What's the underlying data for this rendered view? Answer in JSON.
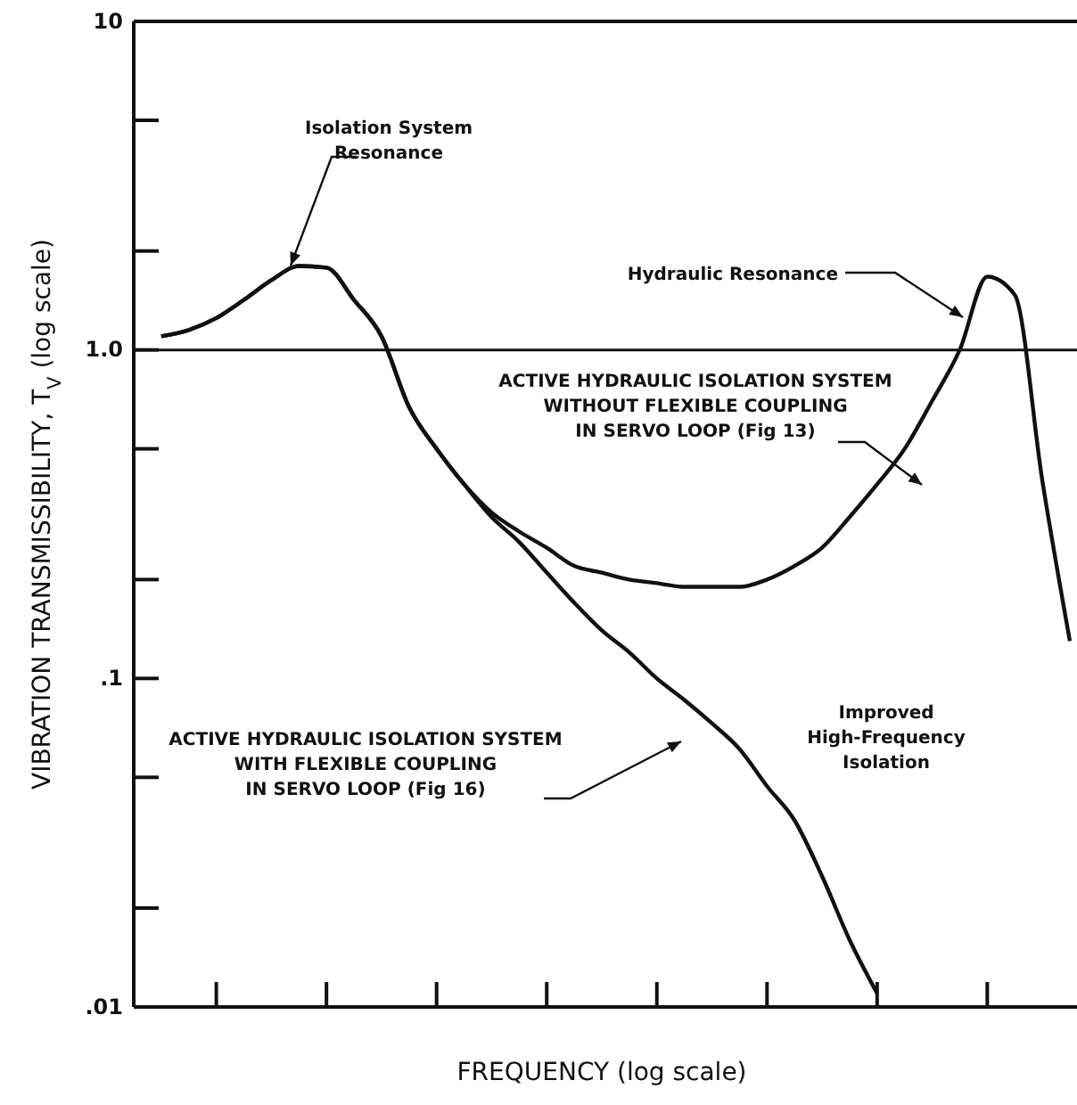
{
  "chart_data": {
    "type": "line",
    "xlabel": "FREQUENCY (log scale)",
    "ylabel": "VIBRATION TRANSMISSIBILITY, T$_{V}$ (log scale)",
    "categories": [
      null,
      null,
      null,
      null,
      null,
      null,
      null,
      null,
      null,
      null,
      null,
      null,
      null,
      null,
      null,
      null,
      null,
      null,
      null,
      null,
      null,
      null,
      null,
      null,
      null,
      null,
      null,
      null,
      null,
      null,
      null,
      null,
      null,
      null,
      null
    ],
    "series": [
      {
        "color": "#111111",
        "values": [
          null,
          1.1,
          1.15,
          1.25,
          1.42,
          1.63,
          1.8,
          1.78,
          1.42,
          1.1,
          0.67,
          0.5,
          0.39,
          0.32,
          0.28,
          0.25,
          0.22,
          0.21,
          0.2,
          0.195,
          0.19,
          0.19,
          0.19,
          0.2,
          0.22,
          0.25,
          0.31,
          0.39,
          0.5,
          0.7,
          1.0,
          1.67,
          1.47,
          0.4,
          0.13
        ]
      },
      {
        "color": "#111111",
        "values": [
          null,
          1.1,
          1.15,
          1.25,
          1.42,
          1.63,
          1.8,
          1.78,
          1.42,
          1.1,
          0.67,
          0.5,
          0.39,
          0.31,
          0.26,
          0.21,
          0.17,
          0.14,
          0.12,
          0.1,
          0.086,
          0.073,
          0.061,
          0.047,
          0.037,
          0.025,
          0.016,
          0.011,
          null,
          null,
          null,
          null,
          null,
          null,
          null
        ]
      }
    ],
    "log": "y",
    "ylim": [
      0.01,
      10
    ],
    "yticks": [
      {
        "value": 0.01,
        "label": ".01"
      },
      {
        "value": 0.02,
        "label": null
      },
      {
        "value": 0.05,
        "label": null
      },
      {
        "value": 0.1,
        "label": ".1"
      },
      {
        "value": 0.2,
        "label": null
      },
      {
        "value": 0.5,
        "label": null
      },
      {
        "value": 1,
        "label": "1.0"
      },
      {
        "value": 2,
        "label": null
      },
      {
        "value": 5,
        "label": null
      },
      10
    ],
    "tick_labels": "y",
    "grid": false,
    "marker": "none",
    "line_style": "solid",
    "ref_lines": [
      {
        "axis": "y",
        "value": 1,
        "color": "#111111"
      }
    ],
    "annotations": [
      "Isolation System\nResonance",
      "Hydraulic Resonance",
      "ACTIVE HYDRAULIC ISOLATION SYSTEM\nWITHOUT FLEXIBLE COUPLING\nIN SERVO LOOP (Fig 13)",
      "ACTIVE HYDRAULIC ISOLATION SYSTEM\nWITH FLEXIBLE COUPLING\nIN SERVO LOOP (Fig 16)",
      "Improved\nHigh-Frequency\nIsolation"
    ]
  }
}
